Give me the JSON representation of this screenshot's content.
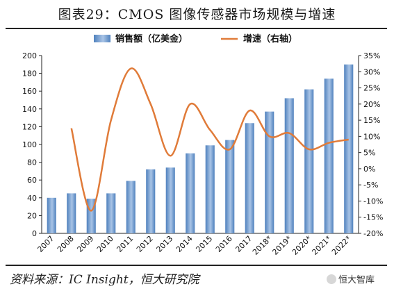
{
  "title": "图表29：CMOS 图像传感器市场规模与增速",
  "source": "资料来源：IC Insight，恒大研究院",
  "watermark": "恒大智库",
  "colors": {
    "bar": "#4f81bd",
    "bar_light": "#a9c4e6",
    "line": "#e07b39"
  },
  "chart_data": {
    "type": "bar+line",
    "categories": [
      "2007",
      "2008",
      "2009",
      "2010",
      "2011",
      "2012",
      "2013",
      "2014",
      "2015",
      "2016",
      "2017",
      "2018*",
      "2019*",
      "2020*",
      "2021*",
      "2022*"
    ],
    "series": [
      {
        "name": "销售额（亿美金）",
        "type": "bar",
        "axis": "left",
        "values": [
          40,
          45,
          39,
          45,
          59,
          72,
          74,
          90,
          99,
          105,
          124,
          137,
          152,
          162,
          174,
          190
        ]
      },
      {
        "name": "增速（右轴）",
        "type": "line",
        "axis": "right",
        "unit": "%",
        "values": [
          null,
          12.5,
          -13,
          15,
          31,
          20,
          4,
          20,
          12,
          6,
          18,
          10,
          11,
          6,
          8,
          9
        ]
      }
    ],
    "y_left": {
      "min": 0,
      "max": 200,
      "step": 20,
      "ticks": [
        "0",
        "20",
        "40",
        "60",
        "80",
        "100",
        "120",
        "140",
        "160",
        "180",
        "200"
      ]
    },
    "y_right": {
      "min": -20,
      "max": 35,
      "step": 5,
      "ticks": [
        "-20%",
        "-15%",
        "-10%",
        "-5%",
        "0%",
        "5%",
        "10%",
        "15%",
        "20%",
        "25%",
        "30%",
        "35%"
      ]
    },
    "legend_position": "top-center",
    "grid": false
  }
}
